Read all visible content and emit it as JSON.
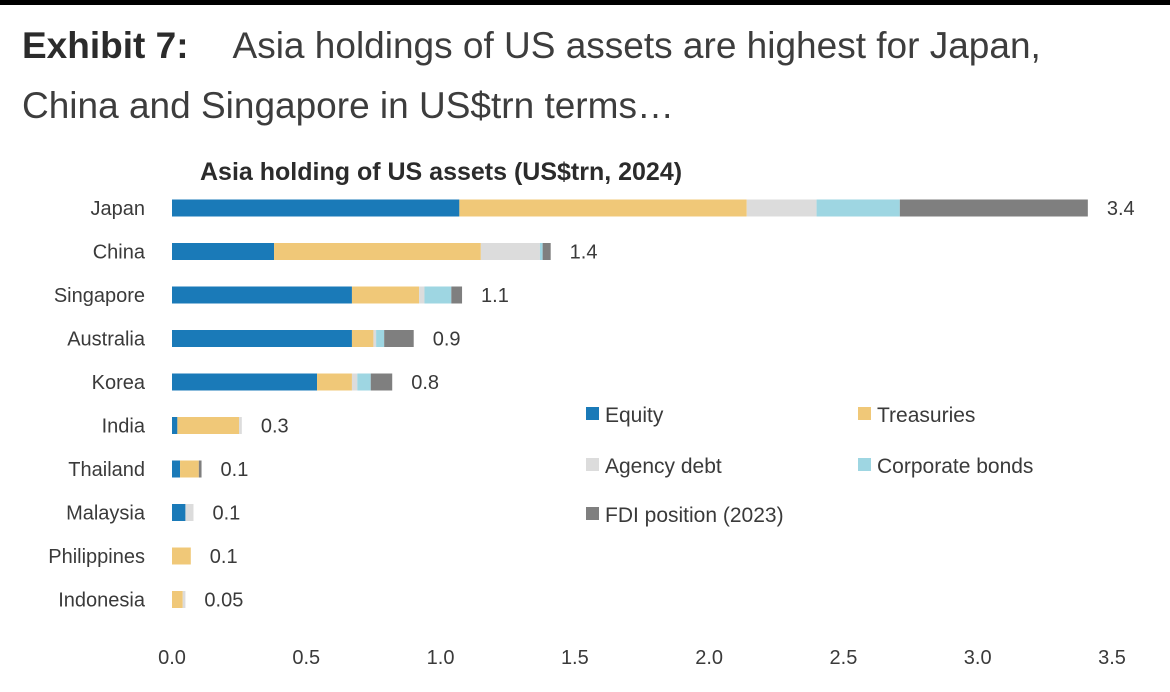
{
  "exhibit": {
    "label": "Exhibit 7:",
    "title": "Asia holdings of US assets are highest for Japan, China and Singapore in US$trn terms…"
  },
  "chart_data": {
    "type": "bar",
    "orientation": "horizontal",
    "stacked": true,
    "title": "Asia holding of US assets (US$trn, 2024)",
    "xlabel": "",
    "ylabel": "",
    "xlim": [
      0,
      3.5
    ],
    "xticks": [
      "0.0",
      "0.5",
      "1.0",
      "1.5",
      "2.0",
      "2.5",
      "3.0",
      "3.5"
    ],
    "categories": [
      "Japan",
      "China",
      "Singapore",
      "Australia",
      "Korea",
      "India",
      "Thailand",
      "Malaysia",
      "Philippines",
      "Indonesia"
    ],
    "totals": [
      "3.4",
      "1.4",
      "1.1",
      "0.9",
      "0.8",
      "0.3",
      "0.1",
      "0.1",
      "0.1",
      "0.05"
    ],
    "series": [
      {
        "name": "Equity",
        "color": "#1a7ab8",
        "values": [
          1.07,
          0.38,
          0.67,
          0.67,
          0.54,
          0.02,
          0.03,
          0.05,
          0.0,
          0.0
        ]
      },
      {
        "name": "Treasuries",
        "color": "#f0c878",
        "values": [
          1.07,
          0.77,
          0.25,
          0.08,
          0.13,
          0.23,
          0.07,
          0.0,
          0.07,
          0.04
        ]
      },
      {
        "name": "Agency debt",
        "color": "#dcdcdc",
        "values": [
          0.26,
          0.22,
          0.02,
          0.01,
          0.02,
          0.01,
          0.0,
          0.03,
          0.0,
          0.01
        ]
      },
      {
        "name": "Corporate bonds",
        "color": "#9ed6e2",
        "values": [
          0.31,
          0.01,
          0.1,
          0.03,
          0.05,
          0.0,
          0.0,
          0.0,
          0.0,
          0.0
        ]
      },
      {
        "name": "FDI position (2023)",
        "color": "#7f7f7f",
        "values": [
          0.7,
          0.03,
          0.04,
          0.11,
          0.08,
          0.0,
          0.01,
          0.0,
          0.0,
          0.0
        ]
      }
    ],
    "legend": "inside, lower-right"
  }
}
